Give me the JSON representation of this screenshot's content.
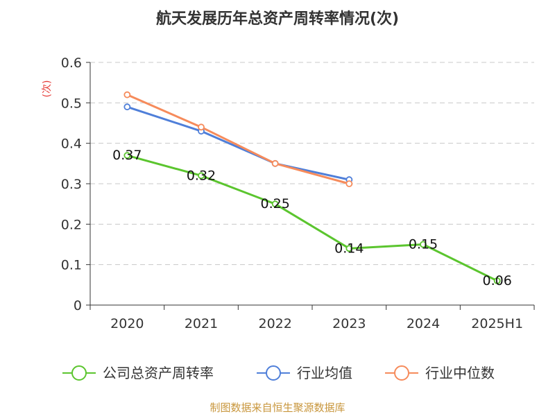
{
  "chart_data": {
    "type": "line",
    "title": "航天发展历年总资产周转率情况(次)",
    "ylabel": "(次)",
    "categories": [
      "2020",
      "2021",
      "2022",
      "2023",
      "2024",
      "2025H1"
    ],
    "ylim": [
      0,
      0.6
    ],
    "yticks": [
      "0",
      "0.1",
      "0.2",
      "0.3",
      "0.4",
      "0.5",
      "0.6"
    ],
    "grid": true,
    "legend_position": "bottom",
    "series": [
      {
        "name": "公司总资产周转率",
        "color": "#5bc52e",
        "values": [
          0.37,
          0.32,
          0.25,
          0.14,
          0.15,
          0.06
        ],
        "labels": [
          "0.37",
          "0.32",
          "0.25",
          "0.14",
          "0.15",
          "0.06"
        ]
      },
      {
        "name": "行业均值",
        "color": "#4f7fd9",
        "values": [
          0.49,
          0.43,
          0.35,
          0.31,
          null,
          null
        ]
      },
      {
        "name": "行业中位数",
        "color": "#f68b5b",
        "values": [
          0.52,
          0.44,
          0.35,
          0.3,
          null,
          null
        ]
      }
    ]
  },
  "source": "制图数据来自恒生聚源数据库"
}
